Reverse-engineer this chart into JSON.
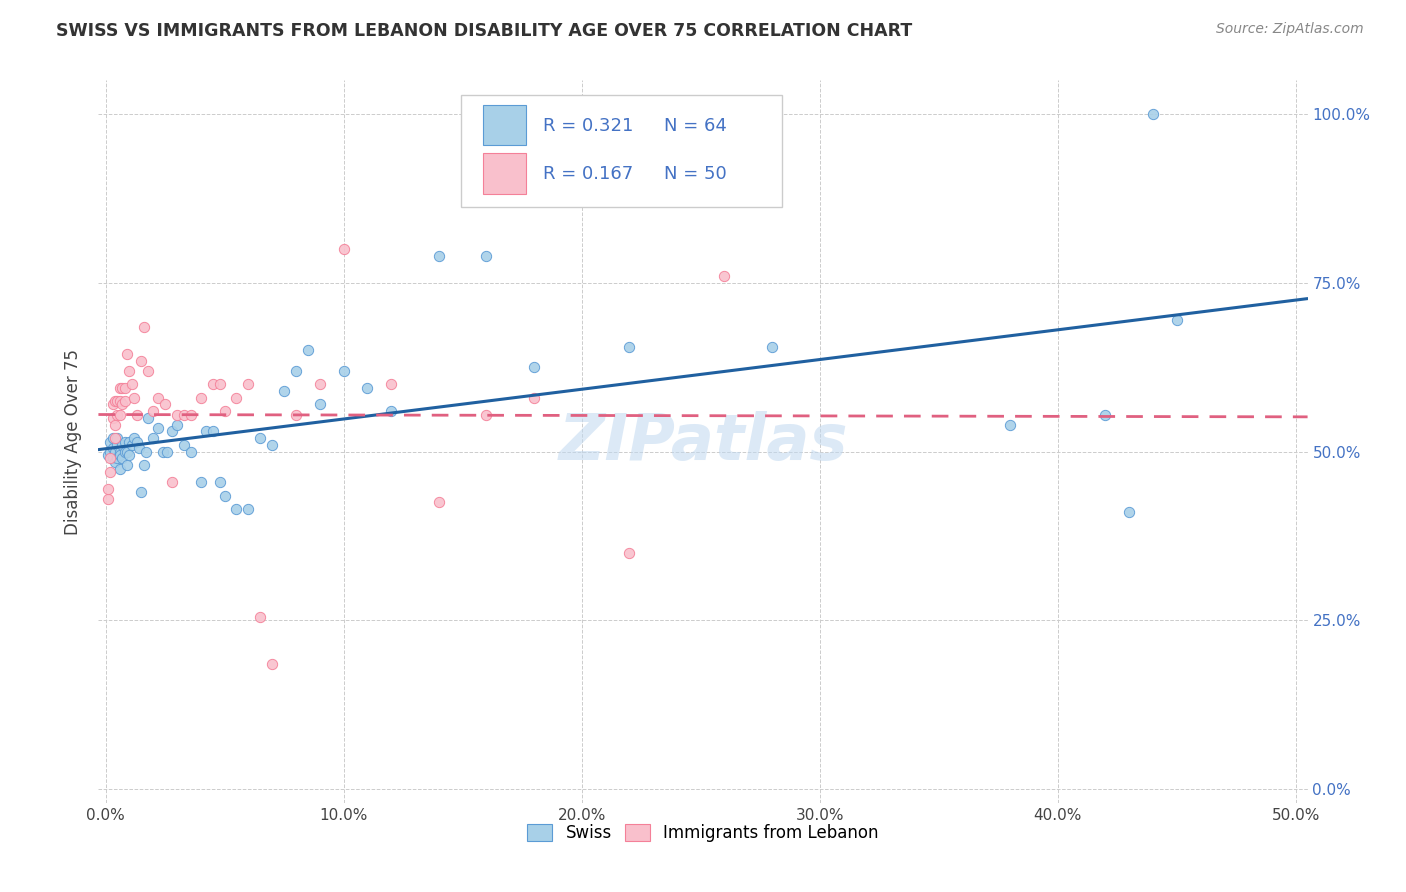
{
  "title": "SWISS VS IMMIGRANTS FROM LEBANON DISABILITY AGE OVER 75 CORRELATION CHART",
  "source": "Source: ZipAtlas.com",
  "ylabel": "Disability Age Over 75",
  "xlim": [
    -0.003,
    0.505
  ],
  "ylim": [
    -0.02,
    1.05
  ],
  "xticks": [
    0.0,
    0.1,
    0.2,
    0.3,
    0.4,
    0.5
  ],
  "yticks": [
    0.0,
    0.25,
    0.5,
    0.75,
    1.0
  ],
  "xtick_labels": [
    "0.0%",
    "10.0%",
    "20.0%",
    "30.0%",
    "40.0%",
    "50.0%"
  ],
  "ytick_labels": [
    "0.0%",
    "25.0%",
    "50.0%",
    "75.0%",
    "100.0%"
  ],
  "swiss_color": "#A8D0E8",
  "lebanon_color": "#F9C0CC",
  "swiss_edge_color": "#5B9BD5",
  "lebanon_edge_color": "#F48098",
  "swiss_line_color": "#2060A0",
  "lebanon_line_color": "#E06080",
  "R_swiss": 0.321,
  "N_swiss": 64,
  "R_lebanon": 0.167,
  "N_lebanon": 50,
  "watermark": "ZIPatlas",
  "swiss_x": [
    0.001,
    0.002,
    0.002,
    0.003,
    0.003,
    0.003,
    0.004,
    0.004,
    0.005,
    0.005,
    0.005,
    0.006,
    0.006,
    0.006,
    0.007,
    0.007,
    0.008,
    0.008,
    0.009,
    0.009,
    0.01,
    0.01,
    0.011,
    0.012,
    0.013,
    0.014,
    0.015,
    0.016,
    0.017,
    0.018,
    0.02,
    0.022,
    0.024,
    0.026,
    0.028,
    0.03,
    0.033,
    0.036,
    0.04,
    0.042,
    0.045,
    0.048,
    0.05,
    0.055,
    0.06,
    0.065,
    0.07,
    0.075,
    0.08,
    0.085,
    0.09,
    0.1,
    0.11,
    0.12,
    0.14,
    0.16,
    0.18,
    0.22,
    0.28,
    0.38,
    0.42,
    0.43,
    0.44,
    0.45
  ],
  "swiss_y": [
    0.495,
    0.5,
    0.515,
    0.49,
    0.505,
    0.52,
    0.5,
    0.485,
    0.49,
    0.51,
    0.52,
    0.5,
    0.495,
    0.475,
    0.49,
    0.51,
    0.5,
    0.515,
    0.48,
    0.5,
    0.495,
    0.515,
    0.51,
    0.52,
    0.515,
    0.505,
    0.44,
    0.48,
    0.5,
    0.55,
    0.52,
    0.535,
    0.5,
    0.5,
    0.53,
    0.54,
    0.51,
    0.5,
    0.455,
    0.53,
    0.53,
    0.455,
    0.435,
    0.415,
    0.415,
    0.52,
    0.51,
    0.59,
    0.62,
    0.65,
    0.57,
    0.62,
    0.595,
    0.56,
    0.79,
    0.79,
    0.625,
    0.655,
    0.655,
    0.54,
    0.555,
    0.41,
    1.0,
    0.695
  ],
  "lebanon_x": [
    0.001,
    0.001,
    0.002,
    0.002,
    0.003,
    0.003,
    0.004,
    0.004,
    0.004,
    0.005,
    0.005,
    0.006,
    0.006,
    0.006,
    0.007,
    0.007,
    0.008,
    0.008,
    0.009,
    0.01,
    0.011,
    0.012,
    0.013,
    0.015,
    0.016,
    0.018,
    0.02,
    0.022,
    0.025,
    0.028,
    0.03,
    0.033,
    0.036,
    0.04,
    0.045,
    0.048,
    0.05,
    0.055,
    0.06,
    0.065,
    0.07,
    0.08,
    0.09,
    0.1,
    0.12,
    0.14,
    0.16,
    0.18,
    0.22,
    0.26
  ],
  "lebanon_y": [
    0.43,
    0.445,
    0.47,
    0.49,
    0.55,
    0.57,
    0.54,
    0.52,
    0.575,
    0.555,
    0.575,
    0.555,
    0.575,
    0.595,
    0.57,
    0.595,
    0.575,
    0.595,
    0.645,
    0.62,
    0.6,
    0.58,
    0.555,
    0.635,
    0.685,
    0.62,
    0.56,
    0.58,
    0.57,
    0.455,
    0.555,
    0.555,
    0.555,
    0.58,
    0.6,
    0.6,
    0.56,
    0.58,
    0.6,
    0.255,
    0.185,
    0.555,
    0.6,
    0.8,
    0.6,
    0.425,
    0.555,
    0.58,
    0.35,
    0.76
  ]
}
